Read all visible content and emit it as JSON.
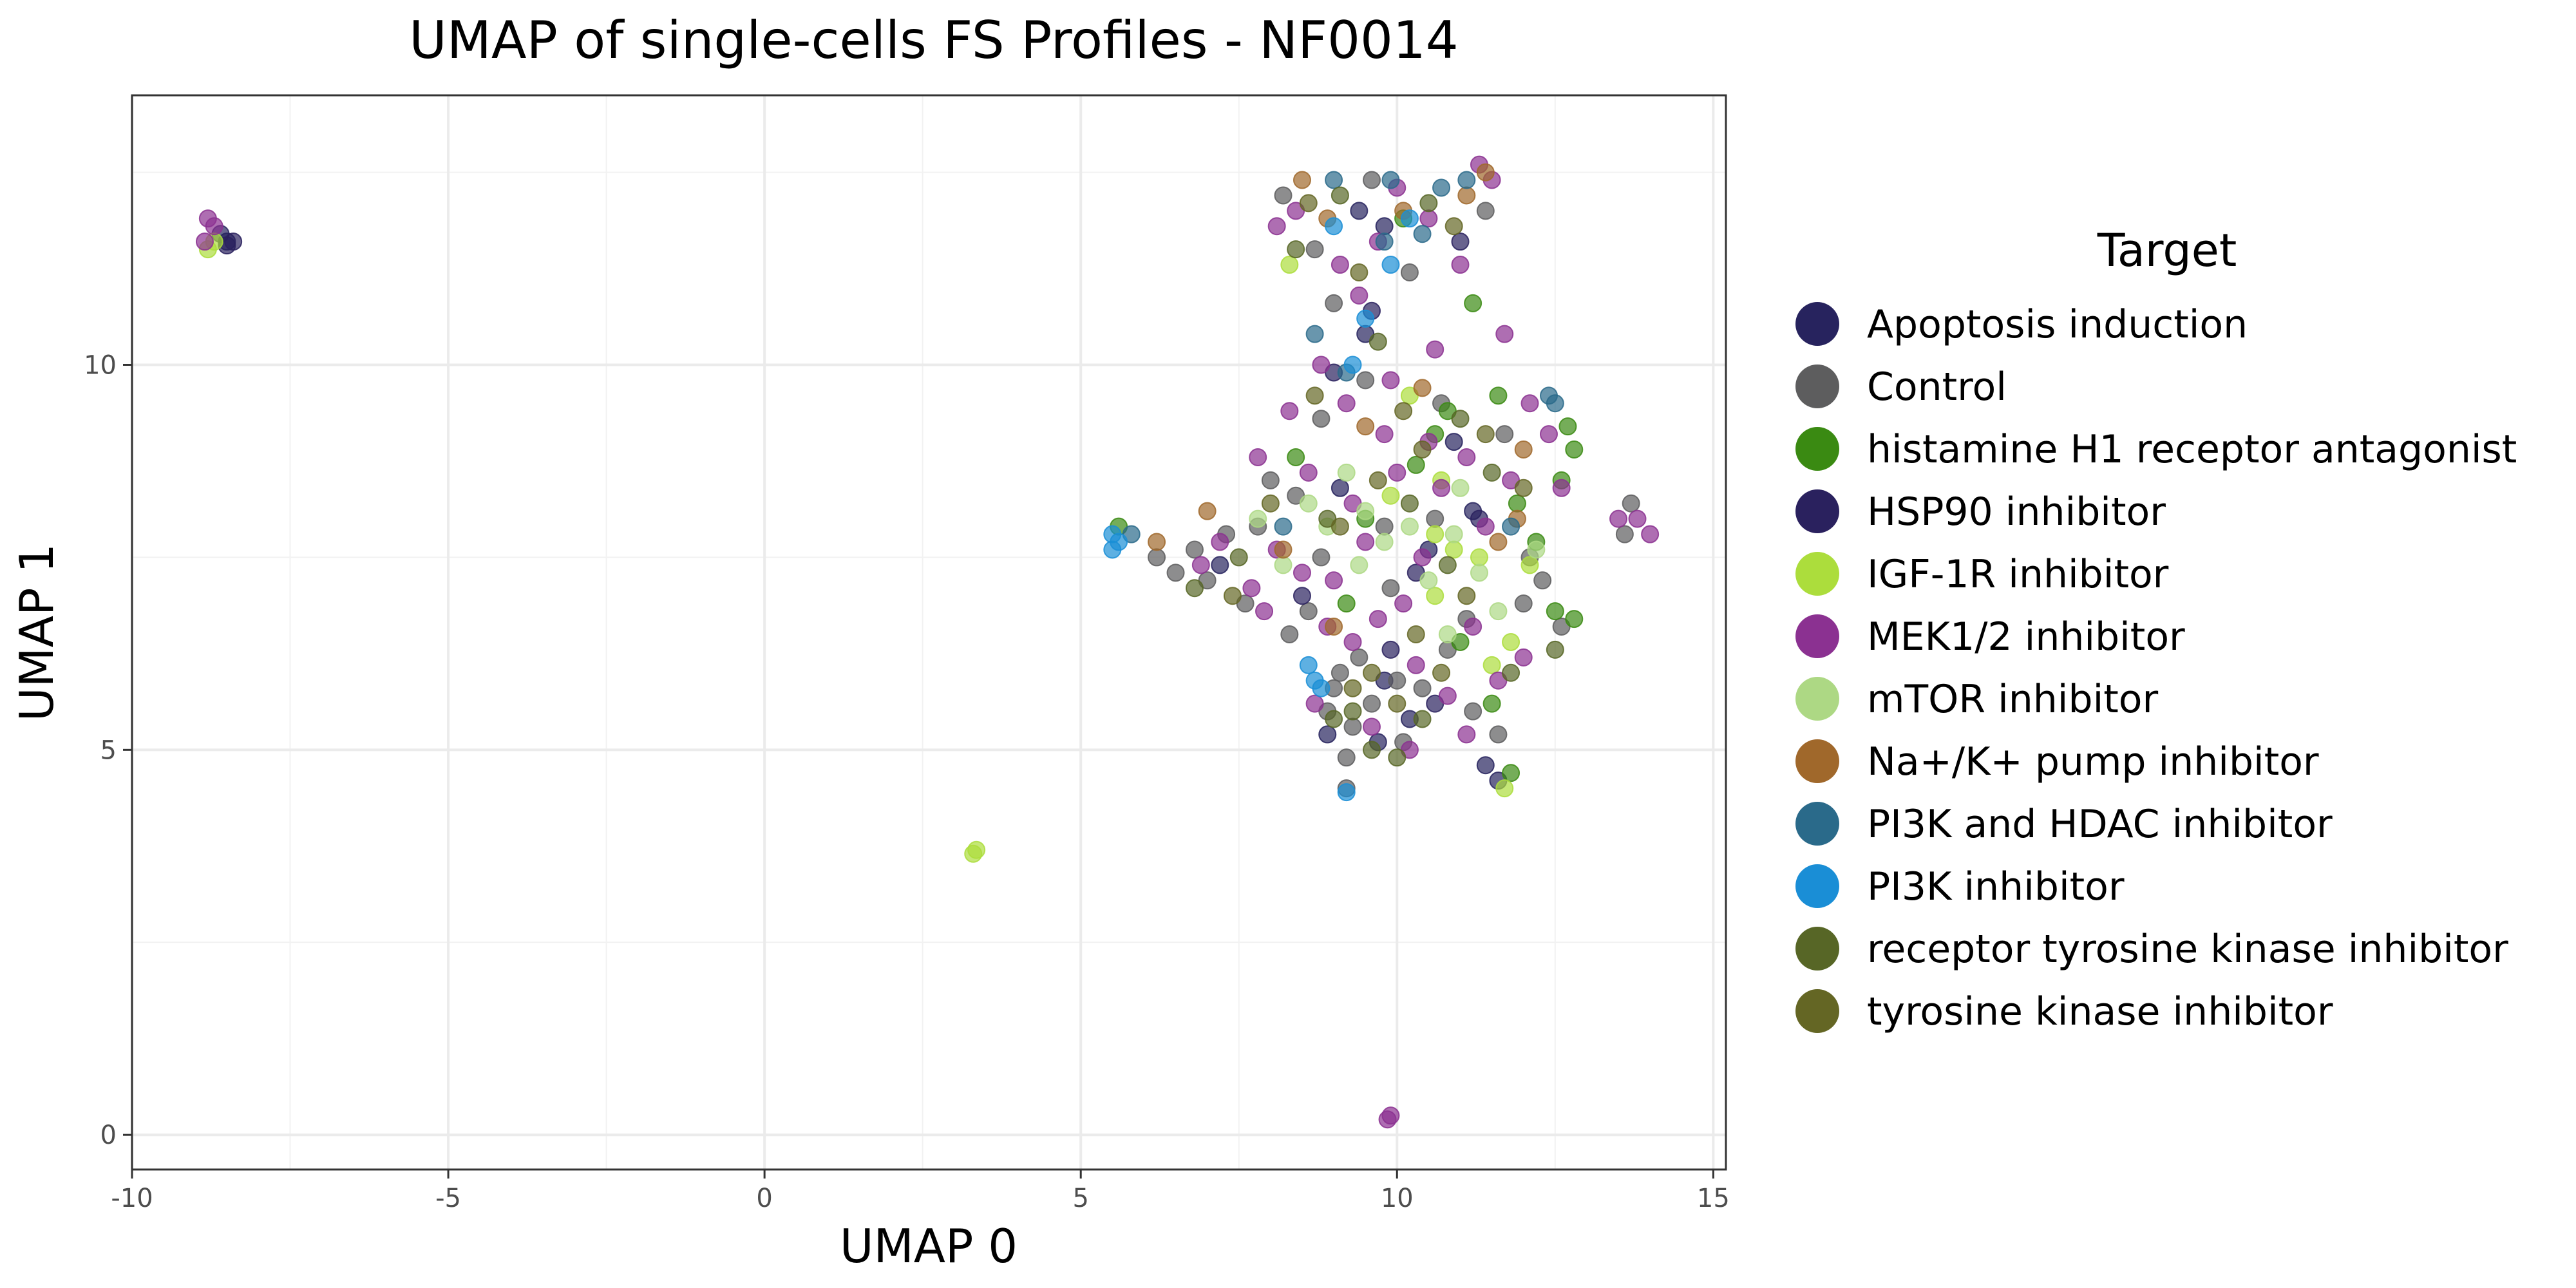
{
  "chart_data": {
    "type": "scatter",
    "title": "UMAP of single-cells FS Profiles - NF0014",
    "xlabel": "UMAP 0",
    "ylabel": "UMAP 1",
    "xlim": [
      -10,
      15.2
    ],
    "ylim": [
      -0.45,
      13.5
    ],
    "x_ticks": [
      -10,
      -5,
      0,
      5,
      10,
      15
    ],
    "x_tick_labels": [
      "-10",
      "-5",
      "0",
      "5",
      "10",
      "15"
    ],
    "y_ticks": [
      0,
      5,
      10
    ],
    "y_tick_labels": [
      "0",
      "5",
      "10"
    ],
    "grid": true,
    "legend": {
      "title": "Target",
      "placement": "right"
    },
    "series": [
      {
        "name": "Apoptosis induction",
        "color": "#27235e",
        "points": [
          [
            -8.5,
            11.6
          ],
          [
            -8.6,
            11.7
          ],
          [
            9.5,
            10.4
          ],
          [
            9.8,
            5.9
          ],
          [
            10.2,
            5.4
          ],
          [
            11.6,
            4.6
          ],
          [
            9.1,
            8.4
          ],
          [
            10.5,
            7.6
          ],
          [
            11.2,
            8.1
          ],
          [
            9.8,
            11.8
          ],
          [
            8.9,
            5.2
          ],
          [
            10.9,
            9.0
          ],
          [
            9.4,
            12.0
          ],
          [
            11.4,
            4.8
          ],
          [
            7.2,
            7.4
          ],
          [
            9.7,
            5.1
          ]
        ]
      },
      {
        "name": "Control",
        "color": "#5d5d5e",
        "points": [
          [
            6.2,
            7.5
          ],
          [
            6.5,
            7.3
          ],
          [
            6.8,
            7.6
          ],
          [
            7.0,
            7.2
          ],
          [
            7.3,
            7.8
          ],
          [
            7.8,
            7.9
          ],
          [
            8.4,
            8.3
          ],
          [
            8.8,
            7.5
          ],
          [
            9.0,
            5.8
          ],
          [
            9.3,
            5.3
          ],
          [
            9.6,
            5.6
          ],
          [
            8.9,
            5.5
          ],
          [
            9.2,
            4.9
          ],
          [
            10.1,
            5.1
          ],
          [
            10.4,
            5.8
          ],
          [
            10.8,
            6.3
          ],
          [
            11.2,
            5.5
          ],
          [
            11.6,
            5.2
          ],
          [
            12.0,
            6.9
          ],
          [
            12.3,
            7.2
          ],
          [
            13.7,
            8.2
          ],
          [
            13.6,
            7.8
          ],
          [
            9.2,
            4.5
          ],
          [
            8.6,
            6.8
          ],
          [
            9.5,
            9.8
          ],
          [
            10.2,
            11.2
          ],
          [
            9.0,
            10.8
          ],
          [
            8.7,
            11.5
          ],
          [
            11.7,
            9.1
          ],
          [
            12.1,
            7.5
          ],
          [
            10.6,
            8.0
          ],
          [
            9.9,
            7.1
          ],
          [
            8.3,
            6.5
          ],
          [
            7.6,
            6.9
          ],
          [
            8.0,
            8.5
          ],
          [
            9.4,
            6.2
          ],
          [
            10.7,
            9.5
          ],
          [
            11.1,
            6.7
          ],
          [
            9.6,
            12.4
          ],
          [
            8.2,
            12.2
          ],
          [
            11.4,
            12.0
          ],
          [
            9.8,
            7.9
          ],
          [
            10.0,
            5.9
          ],
          [
            9.1,
            6.0
          ],
          [
            8.8,
            9.3
          ],
          [
            12.6,
            6.6
          ]
        ]
      },
      {
        "name": "histamine H1 receptor antagonist",
        "color": "#3a8a12",
        "points": [
          [
            12.7,
            9.2
          ],
          [
            12.8,
            8.9
          ],
          [
            12.6,
            8.5
          ],
          [
            12.8,
            6.7
          ],
          [
            12.5,
            6.8
          ],
          [
            11.2,
            10.8
          ],
          [
            10.8,
            9.4
          ],
          [
            11.6,
            9.6
          ],
          [
            10.3,
            8.7
          ],
          [
            9.5,
            8.0
          ],
          [
            11.8,
            4.7
          ],
          [
            11.5,
            5.6
          ],
          [
            12.2,
            7.7
          ],
          [
            5.6,
            7.9
          ],
          [
            10.1,
            11.9
          ],
          [
            8.4,
            8.8
          ],
          [
            11.0,
            6.4
          ],
          [
            9.2,
            6.9
          ],
          [
            10.6,
            9.1
          ],
          [
            11.9,
            8.2
          ]
        ]
      },
      {
        "name": "HSP90 inhibitor",
        "color": "#2a215e",
        "points": [
          [
            -8.5,
            11.55
          ],
          [
            -8.4,
            11.6
          ],
          [
            11.3,
            8.0
          ],
          [
            9.9,
            6.3
          ],
          [
            10.6,
            5.6
          ],
          [
            9.0,
            9.9
          ],
          [
            11.0,
            11.6
          ],
          [
            8.5,
            7.0
          ],
          [
            10.3,
            7.3
          ],
          [
            9.6,
            10.7
          ]
        ]
      },
      {
        "name": "IGF-1R inhibitor",
        "color": "#acdd3c",
        "points": [
          [
            -8.8,
            11.5
          ],
          [
            -8.7,
            11.6
          ],
          [
            3.3,
            3.65
          ],
          [
            3.35,
            3.7
          ],
          [
            10.6,
            7.8
          ],
          [
            10.9,
            7.6
          ],
          [
            11.3,
            7.5
          ],
          [
            11.7,
            4.5
          ],
          [
            11.5,
            6.1
          ],
          [
            10.2,
            9.6
          ],
          [
            10.6,
            7.0
          ],
          [
            11.8,
            6.4
          ],
          [
            9.9,
            8.3
          ],
          [
            12.1,
            7.4
          ],
          [
            8.3,
            11.3
          ],
          [
            10.7,
            8.5
          ]
        ]
      },
      {
        "name": "MEK1/2 inhibitor",
        "color": "#8b3191",
        "points": [
          [
            -8.8,
            11.9
          ],
          [
            -8.7,
            11.8
          ],
          [
            -8.85,
            11.6
          ],
          [
            9.85,
            0.2
          ],
          [
            9.9,
            0.25
          ],
          [
            7.7,
            7.1
          ],
          [
            7.9,
            6.8
          ],
          [
            8.1,
            7.6
          ],
          [
            8.5,
            7.3
          ],
          [
            8.9,
            6.6
          ],
          [
            9.3,
            6.4
          ],
          [
            9.7,
            6.7
          ],
          [
            10.1,
            6.9
          ],
          [
            10.4,
            7.5
          ],
          [
            10.7,
            8.4
          ],
          [
            11.1,
            8.8
          ],
          [
            11.4,
            7.9
          ],
          [
            9.0,
            7.2
          ],
          [
            9.5,
            7.7
          ],
          [
            10.0,
            8.6
          ],
          [
            9.8,
            9.1
          ],
          [
            9.2,
            9.5
          ],
          [
            8.8,
            10.0
          ],
          [
            9.4,
            10.9
          ],
          [
            9.7,
            11.6
          ],
          [
            10.0,
            12.3
          ],
          [
            10.5,
            11.9
          ],
          [
            11.0,
            11.3
          ],
          [
            11.5,
            12.4
          ],
          [
            11.3,
            12.6
          ],
          [
            8.1,
            11.8
          ],
          [
            8.4,
            12.0
          ],
          [
            11.7,
            10.4
          ],
          [
            12.1,
            9.5
          ],
          [
            12.4,
            9.1
          ],
          [
            13.8,
            8.0
          ],
          [
            14.0,
            7.8
          ],
          [
            13.5,
            8.0
          ],
          [
            7.8,
            8.8
          ],
          [
            7.2,
            7.7
          ],
          [
            6.9,
            7.4
          ],
          [
            9.6,
            5.3
          ],
          [
            10.2,
            5.0
          ],
          [
            10.8,
            5.7
          ],
          [
            11.1,
            5.2
          ],
          [
            11.6,
            5.9
          ],
          [
            12.0,
            6.2
          ],
          [
            12.6,
            8.4
          ],
          [
            8.7,
            5.6
          ],
          [
            9.1,
            11.3
          ],
          [
            10.6,
            10.2
          ],
          [
            10.3,
            6.1
          ],
          [
            11.8,
            8.5
          ],
          [
            8.3,
            9.4
          ],
          [
            9.9,
            9.8
          ],
          [
            10.5,
            9.0
          ],
          [
            11.2,
            6.6
          ],
          [
            9.3,
            8.2
          ],
          [
            8.6,
            8.6
          ]
        ]
      },
      {
        "name": "mTOR inhibitor",
        "color": "#add884",
        "points": [
          [
            8.6,
            8.2
          ],
          [
            8.9,
            7.9
          ],
          [
            9.2,
            8.6
          ],
          [
            9.5,
            8.1
          ],
          [
            9.8,
            7.7
          ],
          [
            10.2,
            7.9
          ],
          [
            10.5,
            7.2
          ],
          [
            10.9,
            7.8
          ],
          [
            11.3,
            7.3
          ],
          [
            11.6,
            6.8
          ],
          [
            12.2,
            7.6
          ],
          [
            8.2,
            7.4
          ],
          [
            7.8,
            8.0
          ],
          [
            10.8,
            6.5
          ],
          [
            11.0,
            8.4
          ],
          [
            9.4,
            7.4
          ]
        ]
      },
      {
        "name": "Na+/K+ pump inhibitor",
        "color": "#a0682b",
        "points": [
          [
            8.5,
            12.4
          ],
          [
            8.9,
            11.9
          ],
          [
            11.1,
            12.2
          ],
          [
            11.4,
            12.5
          ],
          [
            11.9,
            8.0
          ],
          [
            12.0,
            8.9
          ],
          [
            8.2,
            7.6
          ],
          [
            7.0,
            8.1
          ],
          [
            6.2,
            7.7
          ],
          [
            9.5,
            9.2
          ],
          [
            10.4,
            9.7
          ],
          [
            11.6,
            7.7
          ],
          [
            9.0,
            6.6
          ],
          [
            10.1,
            12.0
          ]
        ]
      },
      {
        "name": "PI3K and HDAC inhibitor",
        "color": "#2a6a8a",
        "points": [
          [
            12.5,
            9.5
          ],
          [
            12.4,
            9.6
          ],
          [
            9.0,
            12.4
          ],
          [
            9.9,
            12.4
          ],
          [
            10.7,
            12.3
          ],
          [
            11.1,
            12.4
          ],
          [
            8.7,
            10.4
          ],
          [
            9.2,
            9.9
          ],
          [
            9.8,
            11.6
          ],
          [
            11.8,
            7.9
          ],
          [
            8.2,
            7.9
          ],
          [
            10.4,
            11.7
          ],
          [
            5.8,
            7.8
          ]
        ]
      },
      {
        "name": "PI3K inhibitor",
        "color": "#1a8ed6",
        "points": [
          [
            5.5,
            7.6
          ],
          [
            5.5,
            7.8
          ],
          [
            5.6,
            7.7
          ],
          [
            8.6,
            6.1
          ],
          [
            8.7,
            5.9
          ],
          [
            8.8,
            5.8
          ],
          [
            9.2,
            4.45
          ],
          [
            9.9,
            11.3
          ],
          [
            10.2,
            11.9
          ],
          [
            9.3,
            10.0
          ],
          [
            9.5,
            10.6
          ],
          [
            9.0,
            11.8
          ]
        ]
      },
      {
        "name": "receptor tyrosine kinase inhibitor",
        "color": "#576626",
        "points": [
          [
            9.0,
            5.4
          ],
          [
            9.3,
            5.5
          ],
          [
            9.6,
            5.0
          ],
          [
            10.0,
            4.9
          ],
          [
            10.4,
            5.4
          ],
          [
            8.9,
            8.0
          ],
          [
            10.2,
            8.2
          ],
          [
            11.0,
            9.3
          ],
          [
            11.8,
            6.0
          ],
          [
            12.5,
            6.3
          ],
          [
            9.7,
            10.3
          ],
          [
            8.4,
            11.5
          ],
          [
            9.1,
            12.2
          ],
          [
            10.5,
            12.1
          ],
          [
            6.8,
            7.1
          ],
          [
            7.5,
            7.5
          ],
          [
            10.8,
            7.4
          ],
          [
            11.5,
            8.6
          ]
        ]
      },
      {
        "name": "tyrosine kinase inhibitor",
        "color": "#646624",
        "points": [
          [
            9.3,
            5.8
          ],
          [
            9.6,
            6.0
          ],
          [
            10.0,
            5.6
          ],
          [
            10.3,
            6.5
          ],
          [
            10.7,
            6.0
          ],
          [
            11.1,
            7.0
          ],
          [
            9.1,
            7.9
          ],
          [
            9.7,
            8.5
          ],
          [
            10.4,
            8.9
          ],
          [
            8.7,
            9.6
          ],
          [
            9.4,
            11.2
          ],
          [
            8.6,
            12.1
          ],
          [
            10.9,
            11.8
          ],
          [
            7.4,
            7.0
          ],
          [
            12.0,
            8.4
          ],
          [
            11.4,
            9.1
          ],
          [
            8.0,
            8.2
          ],
          [
            10.1,
            9.4
          ]
        ]
      }
    ]
  }
}
